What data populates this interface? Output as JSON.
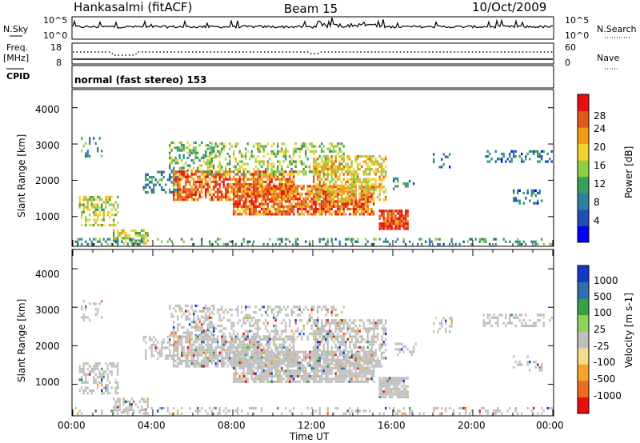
{
  "header": {
    "station": "Hankasalmi (fitACF)",
    "beam": "Beam 15",
    "date": "10/Oct/2009"
  },
  "panels": {
    "nsky_label": "N.Sky",
    "nsky_top": "10^5",
    "nsky_bottom": "10^0",
    "nsearch_label": "N.Search",
    "nsearch_top": "10^5",
    "nsearch_bottom": "10^0",
    "freq_label_1": "Freq.",
    "freq_label_2": "[MHz]",
    "freq_top": "18",
    "freq_bottom": "8",
    "nave_label": "Nave",
    "nave_top": "60",
    "nave_bottom": "0",
    "cpid_label": "CPID",
    "cpid_text": "normal (fast stereo) 153"
  },
  "chart_data": [
    {
      "type": "heatmap",
      "name": "power",
      "ylabel": "Slant Range [km]",
      "y_ticks": [
        "1000",
        "2000",
        "3000",
        "4000"
      ],
      "ylim": [
        180,
        4500
      ],
      "colorbar_label": "Power [dB]",
      "colorbar_ticks": [
        "4",
        "8",
        "12",
        "16",
        "20",
        "24",
        "28"
      ],
      "colorbar_range": [
        0,
        32
      ],
      "colors": [
        "#0000ff",
        "#1f4fb0",
        "#2f7fa0",
        "#3a9d5a",
        "#8fcf45",
        "#f2d22e",
        "#f39c12",
        "#e2581a",
        "#e80e0e"
      ]
    },
    {
      "type": "heatmap",
      "name": "velocity",
      "ylabel": "Slant Range [km]",
      "y_ticks": [
        "1000",
        "2000",
        "3000",
        "4000"
      ],
      "ylim": [
        180,
        4500
      ],
      "colorbar_label": "Velocity [m s-1]",
      "colorbar_ticks": [
        "1000",
        "500",
        "100",
        "25",
        "-25",
        "-100",
        "-500",
        "-1000"
      ],
      "ground_scatter_color": "#bfbfbf",
      "colors": [
        "#e80e0e",
        "#ef6a1d",
        "#f6a428",
        "#f4dd8a",
        "#bfbfbf",
        "#8fd35a",
        "#39a04a",
        "#2f6fb0",
        "#1438c8"
      ]
    }
  ],
  "x_axis": {
    "label": "Time UT",
    "ticks": [
      "00:00",
      "04:00",
      "08:00",
      "12:00",
      "16:00",
      "20:00",
      "00:00"
    ],
    "range_hours": [
      0,
      24
    ]
  }
}
